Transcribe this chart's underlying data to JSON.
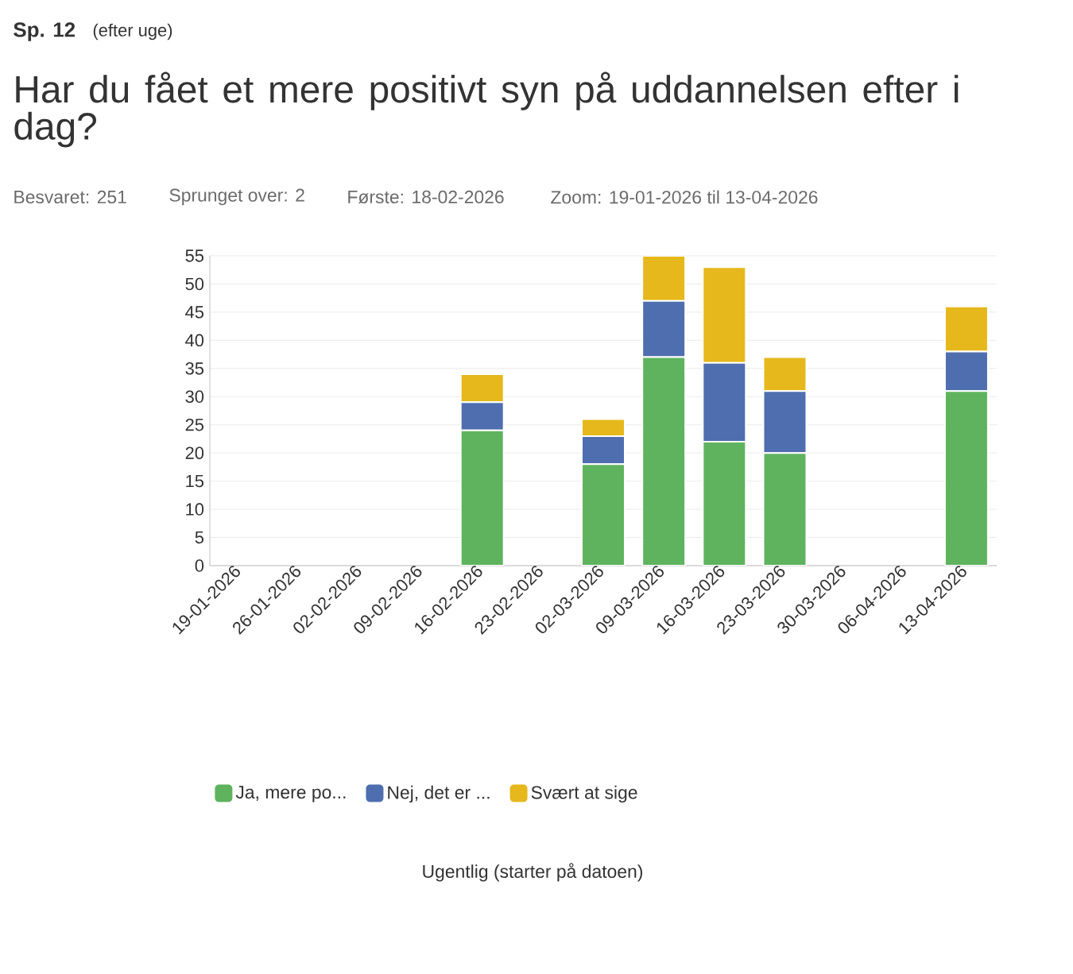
{
  "chart_data": {
    "type": "bar",
    "stacked": true,
    "title": "Har du fået et mere positivt syn på uddannelsen efter i dag?",
    "annotations": [
      "Sp. 12",
      "(efter uge)",
      "Besvaret: 251",
      "Sprunget over: 2",
      "Første: 18-02-2026",
      "Zoom: 19-01-2026 til 13-04-2026",
      "Ugentlig (starter på datoen)"
    ],
    "categories": [
      "19-01-2026",
      "26-01-2026",
      "02-02-2026",
      "09-02-2026",
      "16-02-2026",
      "23-02-2026",
      "02-03-2026",
      "09-03-2026",
      "16-03-2026",
      "23-03-2026",
      "30-03-2026",
      "06-04-2026",
      "13-04-2026"
    ],
    "series": [
      {
        "name": "Ja, mere po...",
        "color": "#5fb35f",
        "values": [
          null,
          null,
          null,
          null,
          24,
          null,
          18,
          37,
          22,
          20,
          null,
          null,
          31
        ]
      },
      {
        "name": "Nej, det er ...",
        "color": "#4f6eaf",
        "values": [
          null,
          null,
          null,
          null,
          5,
          null,
          5,
          10,
          14,
          11,
          null,
          null,
          7
        ]
      },
      {
        "name": "Svært at sige",
        "color": "#e6b81c",
        "values": [
          null,
          null,
          null,
          null,
          5,
          null,
          3,
          8,
          17,
          6,
          null,
          null,
          8
        ]
      }
    ],
    "ylim": [
      0,
      55
    ],
    "yticks": [
      0,
      5,
      10,
      15,
      20,
      25,
      30,
      35,
      40,
      45,
      50,
      55
    ],
    "grid": "y",
    "legend": "bottom"
  }
}
